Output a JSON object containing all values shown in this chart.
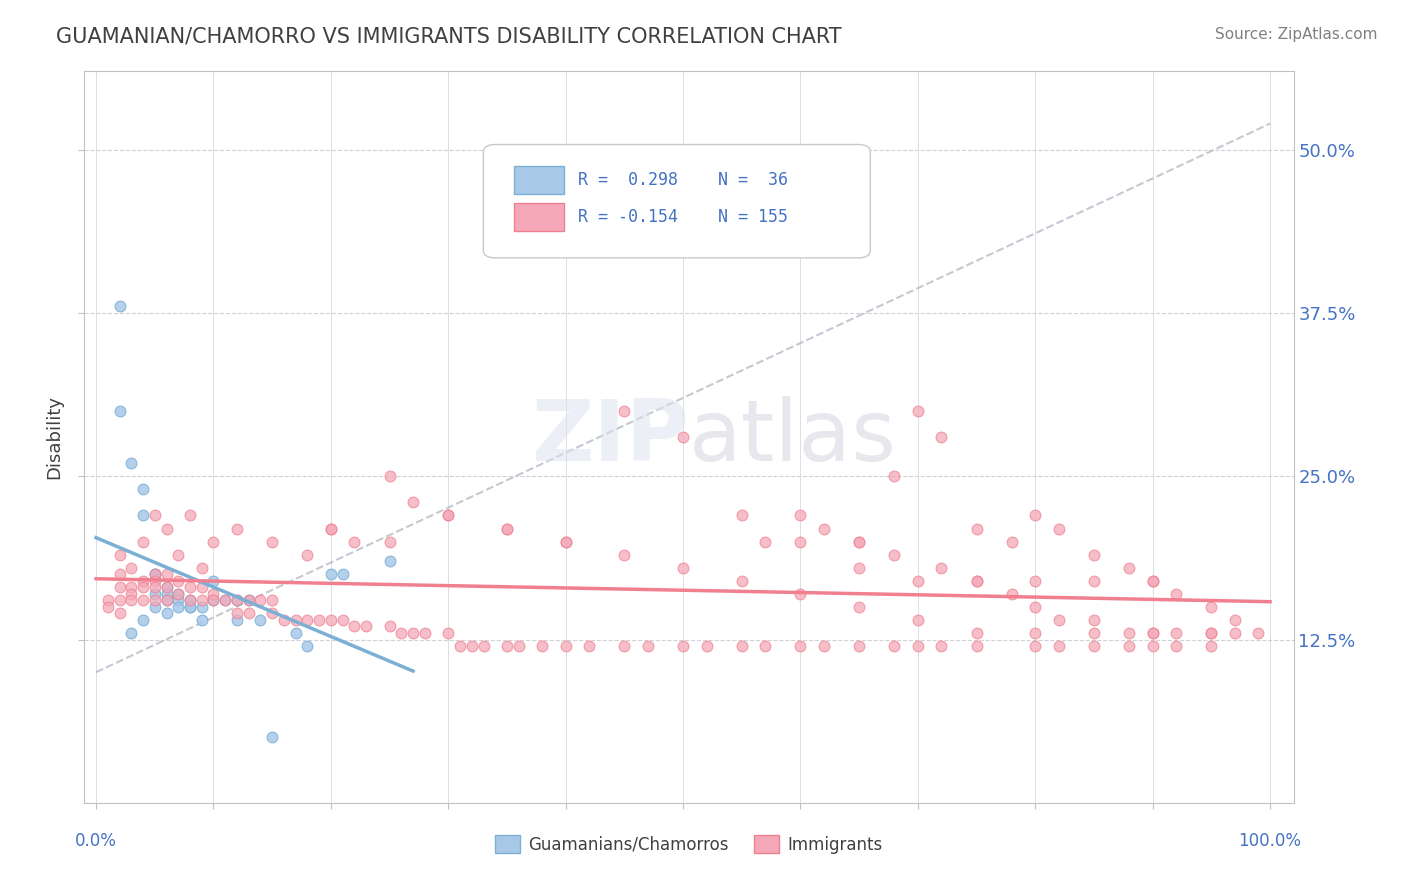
{
  "title": "GUAMANIAN/CHAMORRO VS IMMIGRANTS DISABILITY CORRELATION CHART",
  "source": "Source: ZipAtlas.com",
  "ylabel": "Disability",
  "legend2_entries": [
    {
      "label": "Guamanians/Chamorros",
      "color": "#a8c8e8"
    },
    {
      "label": "Immigrants",
      "color": "#f4a8b8"
    }
  ],
  "blue_color": "#7bafd4",
  "pink_color": "#f08090",
  "blue_scatter_color": "#a8c8e8",
  "pink_scatter_color": "#f4a8b8",
  "y_ticks": [
    "12.5%",
    "25.0%",
    "37.5%",
    "50.0%"
  ],
  "y_tick_vals": [
    0.125,
    0.25,
    0.375,
    0.5
  ],
  "x_ticks": [
    0.0,
    0.1,
    0.2,
    0.3,
    0.4,
    0.5,
    0.6,
    0.7,
    0.8,
    0.9,
    1.0
  ],
  "blue_points_x": [
    0.02,
    0.03,
    0.04,
    0.04,
    0.05,
    0.05,
    0.05,
    0.06,
    0.06,
    0.06,
    0.07,
    0.07,
    0.08,
    0.08,
    0.09,
    0.1,
    0.1,
    0.11,
    0.12,
    0.13,
    0.14,
    0.17,
    0.18,
    0.2,
    0.21,
    0.25,
    0.02,
    0.03,
    0.04,
    0.05,
    0.06,
    0.07,
    0.08,
    0.09,
    0.12,
    0.15
  ],
  "blue_points_y": [
    0.3,
    0.26,
    0.24,
    0.22,
    0.175,
    0.175,
    0.16,
    0.165,
    0.16,
    0.155,
    0.16,
    0.155,
    0.155,
    0.15,
    0.15,
    0.17,
    0.155,
    0.155,
    0.155,
    0.155,
    0.14,
    0.13,
    0.12,
    0.175,
    0.175,
    0.185,
    0.38,
    0.13,
    0.14,
    0.15,
    0.145,
    0.15,
    0.15,
    0.14,
    0.14,
    0.05
  ],
  "pink_points_x": [
    0.01,
    0.01,
    0.02,
    0.02,
    0.02,
    0.02,
    0.03,
    0.03,
    0.03,
    0.04,
    0.04,
    0.04,
    0.05,
    0.05,
    0.05,
    0.05,
    0.06,
    0.06,
    0.06,
    0.07,
    0.07,
    0.08,
    0.08,
    0.09,
    0.09,
    0.1,
    0.1,
    0.11,
    0.12,
    0.12,
    0.13,
    0.13,
    0.14,
    0.15,
    0.15,
    0.16,
    0.17,
    0.18,
    0.19,
    0.2,
    0.21,
    0.22,
    0.23,
    0.25,
    0.26,
    0.27,
    0.28,
    0.3,
    0.31,
    0.32,
    0.33,
    0.35,
    0.36,
    0.38,
    0.4,
    0.42,
    0.45,
    0.47,
    0.5,
    0.52,
    0.55,
    0.57,
    0.6,
    0.62,
    0.65,
    0.68,
    0.7,
    0.72,
    0.75,
    0.8,
    0.82,
    0.85,
    0.88,
    0.9,
    0.92,
    0.95,
    0.02,
    0.03,
    0.04,
    0.05,
    0.06,
    0.07,
    0.08,
    0.09,
    0.1,
    0.12,
    0.15,
    0.18,
    0.2,
    0.22,
    0.25,
    0.27,
    0.3,
    0.35,
    0.4,
    0.45,
    0.5,
    0.55,
    0.6,
    0.65,
    0.7,
    0.75,
    0.8,
    0.85,
    0.9,
    0.65,
    0.68,
    0.72,
    0.75,
    0.78,
    0.8,
    0.82,
    0.85,
    0.88,
    0.9,
    0.92,
    0.95,
    0.97,
    0.99,
    0.57,
    0.6,
    0.62,
    0.65,
    0.68,
    0.7,
    0.72,
    0.75,
    0.78,
    0.8,
    0.82,
    0.85,
    0.88,
    0.9,
    0.92,
    0.95,
    0.97,
    0.2,
    0.25,
    0.3,
    0.35,
    0.4,
    0.45,
    0.5,
    0.55,
    0.6,
    0.65,
    0.7,
    0.75,
    0.8,
    0.85,
    0.9,
    0.95
  ],
  "pink_points_y": [
    0.155,
    0.15,
    0.175,
    0.165,
    0.155,
    0.145,
    0.165,
    0.16,
    0.155,
    0.17,
    0.165,
    0.155,
    0.175,
    0.17,
    0.165,
    0.155,
    0.175,
    0.165,
    0.155,
    0.17,
    0.16,
    0.165,
    0.155,
    0.165,
    0.155,
    0.16,
    0.155,
    0.155,
    0.155,
    0.145,
    0.155,
    0.145,
    0.155,
    0.155,
    0.145,
    0.14,
    0.14,
    0.14,
    0.14,
    0.14,
    0.14,
    0.135,
    0.135,
    0.135,
    0.13,
    0.13,
    0.13,
    0.13,
    0.12,
    0.12,
    0.12,
    0.12,
    0.12,
    0.12,
    0.12,
    0.12,
    0.12,
    0.12,
    0.12,
    0.12,
    0.12,
    0.12,
    0.12,
    0.12,
    0.12,
    0.12,
    0.12,
    0.12,
    0.12,
    0.12,
    0.12,
    0.12,
    0.12,
    0.12,
    0.12,
    0.12,
    0.19,
    0.18,
    0.2,
    0.22,
    0.21,
    0.19,
    0.22,
    0.18,
    0.2,
    0.21,
    0.2,
    0.19,
    0.21,
    0.2,
    0.25,
    0.23,
    0.22,
    0.21,
    0.2,
    0.3,
    0.28,
    0.22,
    0.2,
    0.18,
    0.17,
    0.17,
    0.17,
    0.17,
    0.17,
    0.2,
    0.19,
    0.18,
    0.17,
    0.16,
    0.15,
    0.14,
    0.14,
    0.13,
    0.13,
    0.13,
    0.13,
    0.13,
    0.13,
    0.2,
    0.22,
    0.21,
    0.2,
    0.25,
    0.3,
    0.28,
    0.21,
    0.2,
    0.22,
    0.21,
    0.19,
    0.18,
    0.17,
    0.16,
    0.15,
    0.14,
    0.21,
    0.2,
    0.22,
    0.21,
    0.2,
    0.19,
    0.18,
    0.17,
    0.16,
    0.15,
    0.14,
    0.13,
    0.13,
    0.13,
    0.13,
    0.13
  ]
}
